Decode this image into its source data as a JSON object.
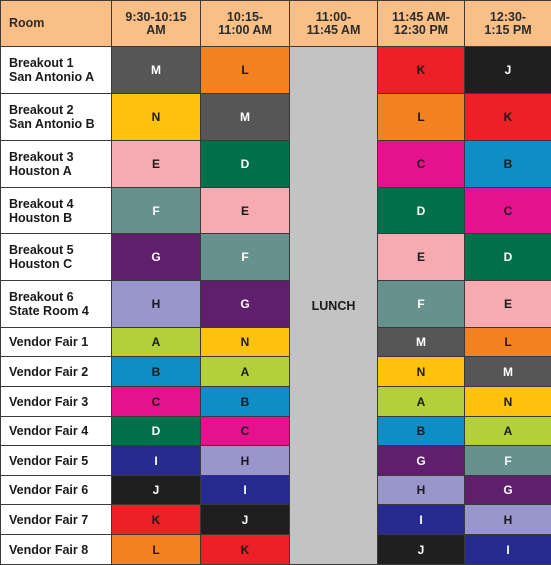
{
  "header": {
    "room": "Room",
    "slots": [
      [
        "9:30-10:15",
        "AM"
      ],
      [
        "10:15-",
        "11:00 AM"
      ],
      [
        "11:00-",
        "11:45 AM"
      ],
      [
        "11:45 AM-",
        "12:30 PM"
      ],
      [
        "12:30-",
        "1:15 PM"
      ]
    ]
  },
  "lunch_label": "LUNCH",
  "colors": {
    "A": "#b3cf3a",
    "B": "#0d8fc6",
    "C": "#e5128f",
    "D": "#00704b",
    "E": "#f6aab1",
    "F": "#66918c",
    "G": "#5f1f6c",
    "H": "#9996cb",
    "I": "#272a8e",
    "J": "#1f1f1f",
    "K": "#ec2127",
    "L": "#f58220",
    "M": "#565656",
    "N": "#ffc20e"
  },
  "text_colors": {
    "A": "#1a1a1a",
    "B": "#1a1a1a",
    "C": "#1a1a1a",
    "D": "#ffffff",
    "E": "#1a1a1a",
    "F": "#ffffff",
    "G": "#ffffff",
    "H": "#1a1a1a",
    "I": "#ffffff",
    "J": "#ffffff",
    "K": "#1a1a1a",
    "L": "#1a1a1a",
    "M": "#ffffff",
    "N": "#1a1a1a"
  },
  "rows": [
    {
      "room": [
        "Breakout 1",
        "San Antonio A"
      ],
      "sessions": [
        "M",
        "L",
        "K",
        "J"
      ]
    },
    {
      "room": [
        "Breakout 2",
        "San Antonio B"
      ],
      "sessions": [
        "N",
        "M",
        "L",
        "K"
      ]
    },
    {
      "room": [
        "Breakout 3",
        "Houston A"
      ],
      "sessions": [
        "E",
        "D",
        "C",
        "B"
      ]
    },
    {
      "room": [
        "Breakout 4",
        "Houston B"
      ],
      "sessions": [
        "F",
        "E",
        "D",
        "C"
      ]
    },
    {
      "room": [
        "Breakout 5",
        "Houston C"
      ],
      "sessions": [
        "G",
        "F",
        "E",
        "D"
      ]
    },
    {
      "room": [
        "Breakout 6",
        "State Room 4"
      ],
      "sessions": [
        "H",
        "G",
        "F",
        "E"
      ]
    },
    {
      "room": [
        "Vendor Fair 1"
      ],
      "sessions": [
        "A",
        "N",
        "M",
        "L"
      ]
    },
    {
      "room": [
        "Vendor Fair 2"
      ],
      "sessions": [
        "B",
        "A",
        "N",
        "M"
      ]
    },
    {
      "room": [
        "Vendor Fair 3"
      ],
      "sessions": [
        "C",
        "B",
        "A",
        "N"
      ]
    },
    {
      "room": [
        "Vendor Fair 4"
      ],
      "sessions": [
        "D",
        "C",
        "B",
        "A"
      ]
    },
    {
      "room": [
        "Vendor Fair 5"
      ],
      "sessions": [
        "I",
        "H",
        "G",
        "F"
      ]
    },
    {
      "room": [
        "Vendor Fair 6"
      ],
      "sessions": [
        "J",
        "I",
        "H",
        "G"
      ]
    },
    {
      "room": [
        "Vendor Fair 7"
      ],
      "sessions": [
        "K",
        "J",
        "I",
        "H"
      ]
    },
    {
      "room": [
        "Vendor Fair 8"
      ],
      "sessions": [
        "L",
        "K",
        "J",
        "I"
      ]
    }
  ]
}
